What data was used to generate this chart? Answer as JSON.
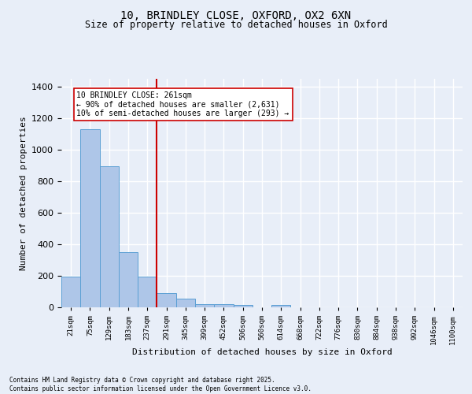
{
  "title1": "10, BRINDLEY CLOSE, OXFORD, OX2 6XN",
  "title2": "Size of property relative to detached houses in Oxford",
  "xlabel": "Distribution of detached houses by size in Oxford",
  "ylabel": "Number of detached properties",
  "bin_labels": [
    "21sqm",
    "75sqm",
    "129sqm",
    "183sqm",
    "237sqm",
    "291sqm",
    "345sqm",
    "399sqm",
    "452sqm",
    "506sqm",
    "560sqm",
    "614sqm",
    "668sqm",
    "722sqm",
    "776sqm",
    "830sqm",
    "884sqm",
    "938sqm",
    "992sqm",
    "1046sqm",
    "1100sqm"
  ],
  "bar_heights": [
    197,
    1130,
    893,
    350,
    197,
    88,
    53,
    22,
    20,
    14,
    0,
    13,
    0,
    0,
    0,
    0,
    0,
    0,
    0,
    0,
    0
  ],
  "bar_color": "#aec6e8",
  "bar_edge_color": "#5a9fd4",
  "bg_color": "#e8eef8",
  "grid_color": "#ffffff",
  "fig_bg_color": "#e8eef8",
  "vline_x": 4.5,
  "vline_color": "#cc0000",
  "annotation_text": "10 BRINDLEY CLOSE: 261sqm\n← 90% of detached houses are smaller (2,631)\n10% of semi-detached houses are larger (293) →",
  "annotation_box_color": "#ffffff",
  "annotation_box_edge": "#cc0000",
  "footer_text": "Contains HM Land Registry data © Crown copyright and database right 2025.\nContains public sector information licensed under the Open Government Licence v3.0.",
  "ylim": [
    0,
    1450
  ],
  "yticks": [
    0,
    200,
    400,
    600,
    800,
    1000,
    1200,
    1400
  ]
}
